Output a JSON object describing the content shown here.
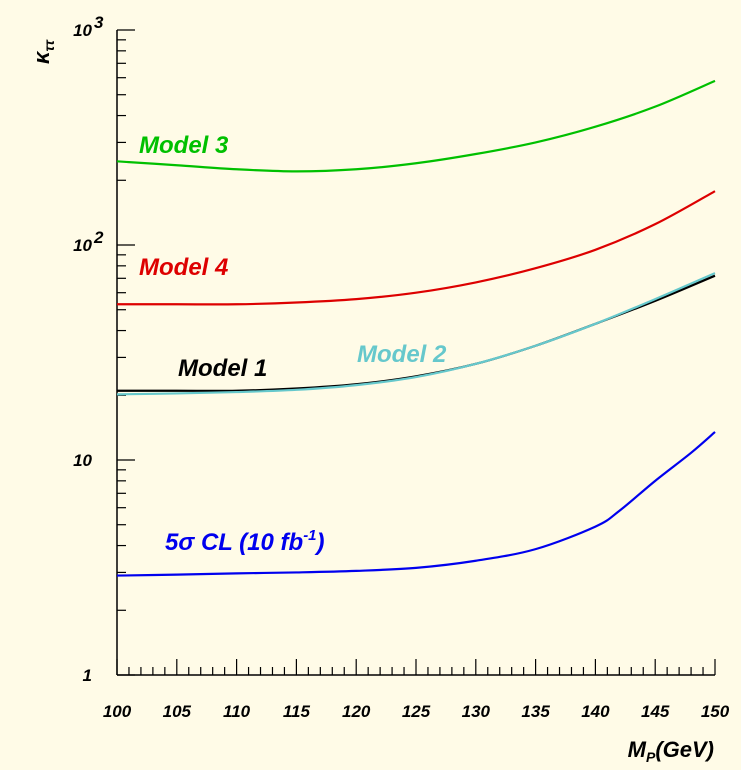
{
  "chart_data": {
    "type": "line",
    "xlabel": "M_P(GeV)",
    "ylabel": "κ_ττ",
    "x_ticks": [
      100,
      105,
      110,
      115,
      120,
      125,
      130,
      135,
      140,
      145,
      150
    ],
    "xlim": [
      100,
      150
    ],
    "ylim": [
      1,
      1000
    ],
    "y_scale": "log",
    "y_ticks": [
      {
        "value": 1,
        "base": "1",
        "exp": ""
      },
      {
        "value": 10,
        "base": "10",
        "exp": ""
      },
      {
        "value": 100,
        "base": "10",
        "exp": "2"
      },
      {
        "value": 1000,
        "base": "10",
        "exp": "3"
      }
    ],
    "grid": false,
    "series": [
      {
        "name": "Model 3",
        "color": "#00c000",
        "x": [
          100,
          105,
          110,
          115,
          120,
          125,
          130,
          135,
          140,
          145,
          150
        ],
        "y": [
          245,
          235,
          225,
          220,
          225,
          240,
          265,
          300,
          355,
          440,
          580
        ]
      },
      {
        "name": "Model 4",
        "color": "#dd0000",
        "x": [
          100,
          105,
          110,
          115,
          120,
          125,
          130,
          135,
          140,
          145,
          150
        ],
        "y": [
          53,
          53,
          53,
          54,
          56,
          60,
          67,
          78,
          95,
          125,
          178
        ]
      },
      {
        "name": "Model 1",
        "color": "#000000",
        "x": [
          100,
          105,
          110,
          115,
          120,
          125,
          130,
          135,
          140,
          145,
          150
        ],
        "y": [
          21,
          21,
          21,
          21.5,
          22.5,
          24.5,
          28,
          34,
          43,
          55,
          72
        ]
      },
      {
        "name": "Model 2",
        "color": "#66c8cc",
        "x": [
          100,
          105,
          110,
          115,
          120,
          125,
          130,
          135,
          140,
          145,
          150
        ],
        "y": [
          20.2,
          20.4,
          20.7,
          21.2,
          22.3,
          24.3,
          28,
          34,
          43,
          56,
          74
        ]
      },
      {
        "name_base": "5σ CL (10 fb",
        "name_sup": "-1",
        "name_end": ")",
        "color": "#0000ee",
        "x": [
          100,
          105,
          110,
          115,
          120,
          125,
          130,
          135,
          140,
          142,
          145,
          148,
          150
        ],
        "y": [
          2.9,
          2.93,
          2.97,
          3.0,
          3.05,
          3.15,
          3.4,
          3.85,
          4.9,
          5.8,
          8.0,
          10.8,
          13.5
        ]
      }
    ]
  }
}
